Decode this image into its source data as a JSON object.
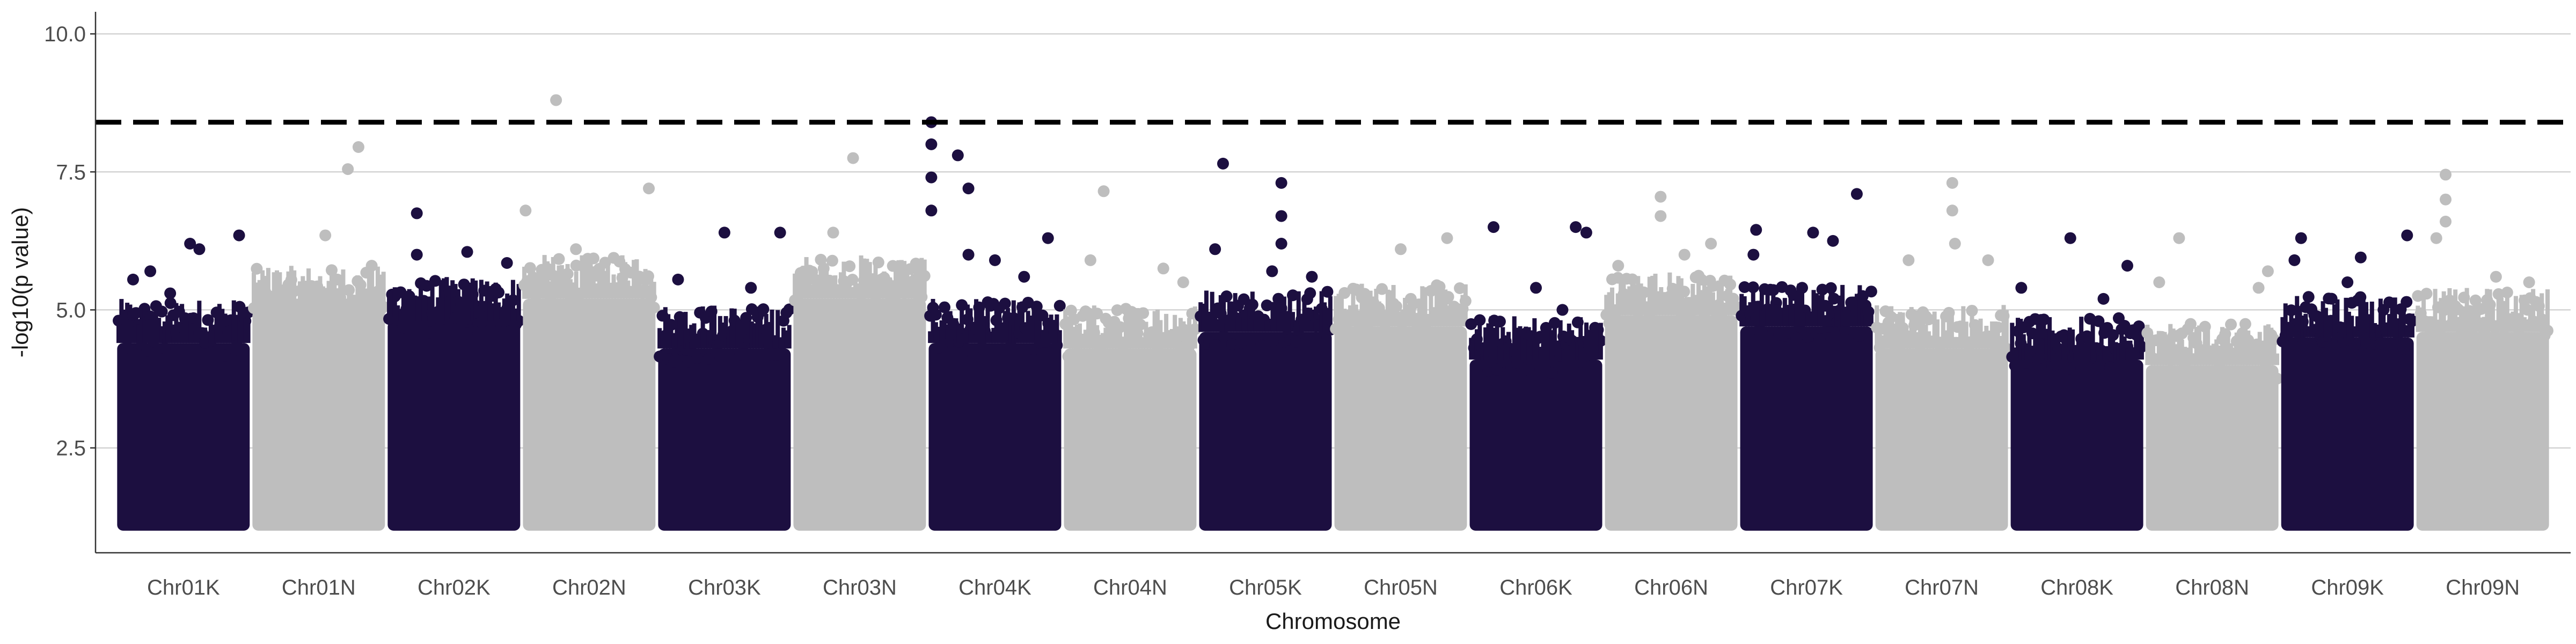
{
  "chart_data": {
    "type": "scatter",
    "title": "",
    "xlabel": "Chromosome",
    "ylabel": "-log10(p value)",
    "ylim": [
      0.6,
      10.4
    ],
    "yticks": [
      2.5,
      5.0,
      7.5,
      10.0
    ],
    "ytick_labels": [
      "2.5",
      "5.0",
      "7.5",
      "10.0"
    ],
    "grid": "horizontal major lines",
    "threshold": {
      "value": 8.4,
      "style": "dashed",
      "color": "#000000"
    },
    "colors": {
      "odd": "#1c0f40",
      "even": "#bebebe"
    },
    "categories": [
      "Chr01K",
      "Chr01N",
      "Chr02K",
      "Chr02N",
      "Chr03K",
      "Chr03N",
      "Chr04K",
      "Chr04N",
      "Chr05K",
      "Chr05N",
      "Chr06K",
      "Chr06N",
      "Chr07K",
      "Chr07N",
      "Chr08K",
      "Chr08N",
      "Chr09K",
      "Chr09N"
    ],
    "series": [
      {
        "chromosome": "Chr01K",
        "color": "#1c0f40",
        "baseline": 1.0,
        "dense_top": 4.4,
        "notable_points": [
          [
            0.12,
            5.55
          ],
          [
            0.25,
            5.7
          ],
          [
            0.55,
            6.2
          ],
          [
            0.62,
            6.1
          ],
          [
            0.92,
            6.35
          ],
          [
            0.4,
            5.3
          ]
        ]
      },
      {
        "chromosome": "Chr01N",
        "color": "#bebebe",
        "baseline": 1.0,
        "dense_top": 5.0,
        "notable_points": [
          [
            0.72,
            7.55
          ],
          [
            0.8,
            7.95
          ],
          [
            0.55,
            6.35
          ],
          [
            0.9,
            5.8
          ]
        ]
      },
      {
        "chromosome": "Chr02K",
        "color": "#1c0f40",
        "baseline": 1.0,
        "dense_top": 4.8,
        "notable_points": [
          [
            0.22,
            6.75
          ],
          [
            0.22,
            6.0
          ],
          [
            0.6,
            6.05
          ],
          [
            0.9,
            5.85
          ]
        ]
      },
      {
        "chromosome": "Chr02N",
        "color": "#bebebe",
        "baseline": 1.0,
        "dense_top": 5.2,
        "notable_points": [
          [
            0.02,
            6.8
          ],
          [
            0.25,
            8.8
          ],
          [
            0.95,
            7.2
          ],
          [
            0.4,
            6.1
          ]
        ]
      },
      {
        "chromosome": "Chr03K",
        "color": "#1c0f40",
        "baseline": 1.0,
        "dense_top": 4.3,
        "notable_points": [
          [
            0.15,
            5.55
          ],
          [
            0.5,
            6.4
          ],
          [
            0.92,
            6.4
          ],
          [
            0.7,
            5.4
          ]
        ]
      },
      {
        "chromosome": "Chr03N",
        "color": "#bebebe",
        "baseline": 1.0,
        "dense_top": 5.2,
        "notable_points": [
          [
            0.45,
            7.75
          ],
          [
            0.3,
            6.4
          ],
          [
            0.8,
            5.5
          ]
        ]
      },
      {
        "chromosome": "Chr04K",
        "color": "#1c0f40",
        "baseline": 1.0,
        "dense_top": 4.4,
        "notable_points": [
          [
            0.02,
            8.4
          ],
          [
            0.02,
            8.0
          ],
          [
            0.02,
            7.4
          ],
          [
            0.02,
            6.8
          ],
          [
            0.22,
            7.8
          ],
          [
            0.3,
            7.2
          ],
          [
            0.3,
            6.0
          ],
          [
            0.5,
            5.9
          ],
          [
            0.9,
            6.3
          ],
          [
            0.72,
            5.6
          ]
        ]
      },
      {
        "chromosome": "Chr04N",
        "color": "#bebebe",
        "baseline": 1.0,
        "dense_top": 4.3,
        "notable_points": [
          [
            0.3,
            7.15
          ],
          [
            0.2,
            5.9
          ],
          [
            0.75,
            5.75
          ],
          [
            0.9,
            5.5
          ]
        ]
      },
      {
        "chromosome": "Chr05K",
        "color": "#1c0f40",
        "baseline": 1.0,
        "dense_top": 4.6,
        "notable_points": [
          [
            0.18,
            7.65
          ],
          [
            0.12,
            6.1
          ],
          [
            0.62,
            7.3
          ],
          [
            0.62,
            6.7
          ],
          [
            0.62,
            6.2
          ],
          [
            0.55,
            5.7
          ],
          [
            0.85,
            5.6
          ]
        ]
      },
      {
        "chromosome": "Chr05N",
        "color": "#bebebe",
        "baseline": 1.0,
        "dense_top": 4.7,
        "notable_points": [
          [
            0.5,
            6.1
          ],
          [
            0.85,
            6.3
          ],
          [
            0.2,
            5.3
          ]
        ]
      },
      {
        "chromosome": "Chr06K",
        "color": "#1c0f40",
        "baseline": 1.0,
        "dense_top": 4.1,
        "notable_points": [
          [
            0.18,
            6.5
          ],
          [
            0.5,
            5.4
          ],
          [
            0.8,
            6.5
          ],
          [
            0.88,
            6.4
          ],
          [
            0.7,
            5.0
          ]
        ]
      },
      {
        "chromosome": "Chr06N",
        "color": "#bebebe",
        "baseline": 1.0,
        "dense_top": 4.9,
        "notable_points": [
          [
            0.42,
            7.05
          ],
          [
            0.42,
            6.7
          ],
          [
            0.8,
            6.2
          ],
          [
            0.1,
            5.8
          ],
          [
            0.6,
            6.0
          ]
        ]
      },
      {
        "chromosome": "Chr07K",
        "color": "#1c0f40",
        "baseline": 1.0,
        "dense_top": 4.7,
        "notable_points": [
          [
            0.12,
            6.45
          ],
          [
            0.55,
            6.4
          ],
          [
            0.7,
            6.25
          ],
          [
            0.88,
            7.1
          ],
          [
            0.1,
            6.0
          ]
        ]
      },
      {
        "chromosome": "Chr07N",
        "color": "#bebebe",
        "baseline": 1.0,
        "dense_top": 4.3,
        "notable_points": [
          [
            0.58,
            7.3
          ],
          [
            0.58,
            6.8
          ],
          [
            0.6,
            6.2
          ],
          [
            0.25,
            5.9
          ],
          [
            0.85,
            5.9
          ]
        ]
      },
      {
        "chromosome": "Chr08K",
        "color": "#1c0f40",
        "baseline": 1.0,
        "dense_top": 4.1,
        "notable_points": [
          [
            0.08,
            5.4
          ],
          [
            0.45,
            6.3
          ],
          [
            0.88,
            5.8
          ],
          [
            0.7,
            5.2
          ]
        ]
      },
      {
        "chromosome": "Chr08N",
        "color": "#bebebe",
        "baseline": 1.0,
        "dense_top": 4.0,
        "notable_points": [
          [
            0.25,
            6.3
          ],
          [
            0.1,
            5.5
          ],
          [
            0.85,
            5.4
          ],
          [
            0.92,
            5.7
          ]
        ]
      },
      {
        "chromosome": "Chr09K",
        "color": "#1c0f40",
        "baseline": 1.0,
        "dense_top": 4.5,
        "notable_points": [
          [
            0.15,
            6.3
          ],
          [
            0.1,
            5.9
          ],
          [
            0.6,
            5.95
          ],
          [
            0.95,
            6.35
          ],
          [
            0.5,
            5.5
          ]
        ]
      },
      {
        "chromosome": "Chr09N",
        "color": "#bebebe",
        "baseline": 1.0,
        "dense_top": 4.6,
        "notable_points": [
          [
            0.22,
            7.45
          ],
          [
            0.22,
            7.0
          ],
          [
            0.22,
            6.6
          ],
          [
            0.15,
            6.3
          ],
          [
            0.6,
            5.6
          ],
          [
            0.85,
            5.5
          ]
        ]
      }
    ]
  }
}
